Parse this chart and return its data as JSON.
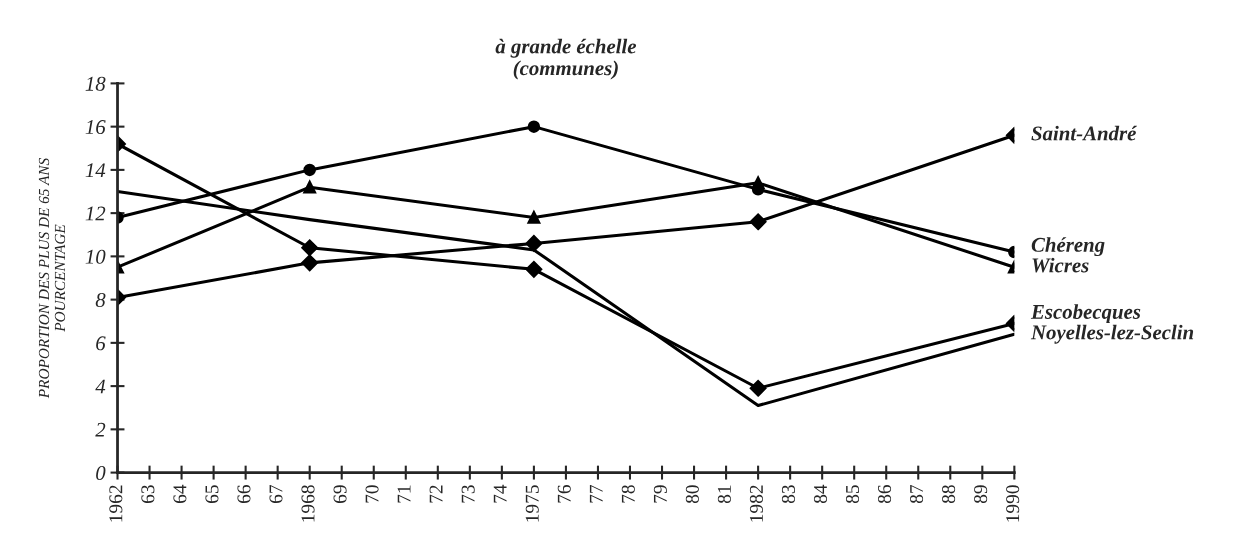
{
  "chart_data": {
    "type": "line",
    "title": "à grande échelle\n(communes)",
    "ylabel": "PROPORTION DES PLUS DE 65 ANS\nPOURCENTAGE",
    "x": [
      1962,
      1968,
      1975,
      1982,
      1990
    ],
    "series": [
      {
        "name": "Saint-André",
        "color": "#000000",
        "marker": "diamond",
        "values": [
          8.1,
          9.7,
          10.6,
          11.6,
          15.6
        ]
      },
      {
        "name": "Chéreng",
        "color": "#000000",
        "marker": "circle",
        "values": [
          11.8,
          14.0,
          16.0,
          13.1,
          10.2
        ]
      },
      {
        "name": "Wicres",
        "color": "#000000",
        "marker": "triangle",
        "values": [
          9.5,
          13.2,
          11.8,
          13.4,
          9.5
        ]
      },
      {
        "name": "Escobecques",
        "color": "#000000",
        "marker": "diamond",
        "values": [
          15.2,
          10.4,
          9.4,
          3.9,
          6.9
        ]
      },
      {
        "name": "Noyelles-lez-Seclin",
        "color": "#000000",
        "marker": "none",
        "values": [
          13.0,
          11.7,
          10.3,
          3.1,
          6.4
        ]
      }
    ],
    "xlim": [
      1962,
      1990
    ],
    "xticks": [
      1962,
      {
        "value": 1963,
        "label": "63"
      },
      {
        "value": 1964,
        "label": "64"
      },
      {
        "value": 1965,
        "label": "65"
      },
      {
        "value": 1966,
        "label": "66"
      },
      {
        "value": 1967,
        "label": "67"
      },
      1968,
      {
        "value": 1969,
        "label": "69"
      },
      {
        "value": 1970,
        "label": "70"
      },
      {
        "value": 1971,
        "label": "71"
      },
      {
        "value": 1972,
        "label": "72"
      },
      {
        "value": 1973,
        "label": "73"
      },
      {
        "value": 1974,
        "label": "74"
      },
      1975,
      {
        "value": 1976,
        "label": "76"
      },
      {
        "value": 1977,
        "label": "77"
      },
      {
        "value": 1978,
        "label": "78"
      },
      {
        "value": 1979,
        "label": "79"
      },
      {
        "value": 1980,
        "label": "80"
      },
      {
        "value": 1981,
        "label": "81"
      },
      1982,
      {
        "value": 1983,
        "label": "83"
      },
      {
        "value": 1984,
        "label": "84"
      },
      {
        "value": 1985,
        "label": "85"
      },
      {
        "value": 1986,
        "label": "86"
      },
      {
        "value": 1987,
        "label": "87"
      },
      {
        "value": 1988,
        "label": "88"
      },
      {
        "value": 1989,
        "label": "89"
      },
      1990
    ],
    "ylim": [
      0,
      18
    ],
    "yticks": [
      0,
      2,
      4,
      6,
      8,
      10,
      12,
      14,
      16,
      18
    ],
    "grid": false,
    "legend": "right",
    "line_style": "solid"
  }
}
